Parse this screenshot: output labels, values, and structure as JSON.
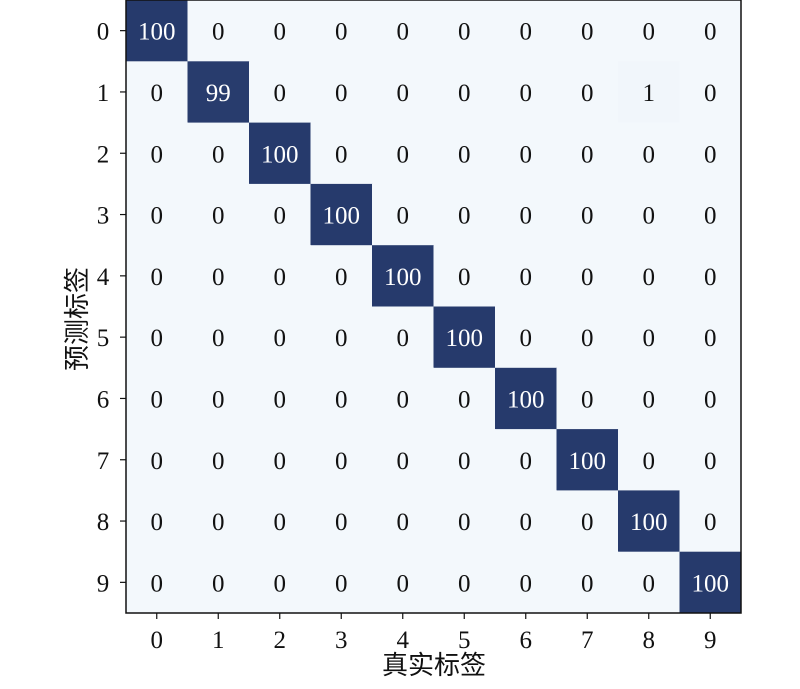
{
  "chart_data": {
    "type": "heatmap",
    "title": "",
    "xlabel": "真实标签",
    "ylabel": "预测标签",
    "x_categories": [
      "0",
      "1",
      "2",
      "3",
      "4",
      "5",
      "6",
      "7",
      "8",
      "9"
    ],
    "y_categories": [
      "0",
      "1",
      "2",
      "3",
      "4",
      "5",
      "6",
      "7",
      "8",
      "9"
    ],
    "values": [
      [
        100,
        0,
        0,
        0,
        0,
        0,
        0,
        0,
        0,
        0
      ],
      [
        0,
        99,
        0,
        0,
        0,
        0,
        0,
        0,
        1,
        0
      ],
      [
        0,
        0,
        100,
        0,
        0,
        0,
        0,
        0,
        0,
        0
      ],
      [
        0,
        0,
        0,
        100,
        0,
        0,
        0,
        0,
        0,
        0
      ],
      [
        0,
        0,
        0,
        0,
        100,
        0,
        0,
        0,
        0,
        0
      ],
      [
        0,
        0,
        0,
        0,
        0,
        100,
        0,
        0,
        0,
        0
      ],
      [
        0,
        0,
        0,
        0,
        0,
        0,
        100,
        0,
        0,
        0
      ],
      [
        0,
        0,
        0,
        0,
        0,
        0,
        0,
        100,
        0,
        0
      ],
      [
        0,
        0,
        0,
        0,
        0,
        0,
        0,
        0,
        100,
        0
      ],
      [
        0,
        0,
        0,
        0,
        0,
        0,
        0,
        0,
        0,
        100
      ]
    ],
    "vmin": 0,
    "vmax": 100,
    "colors": {
      "low": "#f3f8fc",
      "high": "#263a6c",
      "text_on_high": "#ffffff",
      "text_on_low": "#111111",
      "frame": "#111111"
    }
  }
}
